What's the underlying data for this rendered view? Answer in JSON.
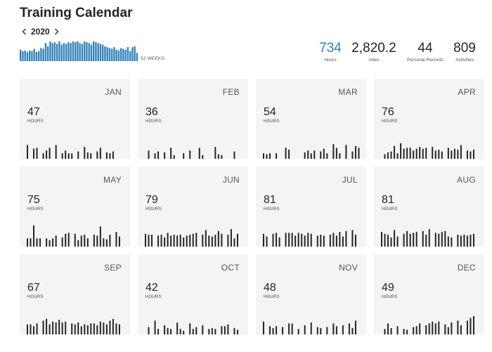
{
  "header": {
    "title": "Training Calendar",
    "year": "2020",
    "weeks_label": "52 WEEKS"
  },
  "stats": [
    {
      "value": "734",
      "label": "Hours"
    },
    {
      "value": "2,820.2",
      "label": "miles"
    },
    {
      "value": "44",
      "label": "Personal Records"
    },
    {
      "value": "809",
      "label": "Activities"
    }
  ],
  "accent_color": "#2f81b7",
  "weekly_hours": [
    14,
    12,
    13,
    11,
    13,
    12,
    15,
    11,
    12,
    16,
    15,
    22,
    18,
    24,
    22,
    23,
    21,
    24,
    20,
    22,
    21,
    23,
    22,
    24,
    23,
    24,
    22,
    21,
    24,
    23,
    22,
    20,
    24,
    23,
    22,
    21,
    20,
    18,
    17,
    16,
    15,
    17,
    14,
    13,
    16,
    15,
    14,
    17,
    12,
    17,
    18,
    10
  ],
  "months": [
    {
      "name": "JAN",
      "hours": "47",
      "unit": "HOURS",
      "daily": [
        15,
        0,
        11,
        12,
        0,
        6,
        9,
        12,
        0,
        15,
        0,
        6,
        9,
        6,
        6,
        0,
        8,
        0,
        13,
        7,
        6,
        0,
        8,
        12,
        0,
        7,
        6,
        8
      ]
    },
    {
      "name": "FEB",
      "hours": "36",
      "unit": "HOURS",
      "daily": [
        0,
        9,
        0,
        6,
        8,
        0,
        7,
        0,
        12,
        4,
        0,
        0,
        6,
        0,
        9,
        0,
        0,
        12,
        4,
        0,
        0,
        0,
        13,
        5,
        4,
        0,
        0,
        0,
        8
      ]
    },
    {
      "name": "MAR",
      "hours": "54",
      "unit": "HOURS",
      "daily": [
        6,
        5,
        6,
        0,
        6,
        0,
        0,
        12,
        10,
        0,
        0,
        0,
        0,
        7,
        9,
        6,
        9,
        0,
        8,
        11,
        6,
        0,
        16,
        12,
        6,
        0,
        15,
        0,
        8,
        14,
        12,
        7
      ]
    },
    {
      "name": "APR",
      "hours": "76",
      "unit": "HOURS",
      "daily": [
        0,
        5,
        7,
        8,
        14,
        6,
        17,
        11,
        12,
        12,
        9,
        11,
        13,
        11,
        12,
        0,
        13,
        9,
        10,
        8,
        0,
        12,
        9,
        11,
        10,
        15,
        0,
        9,
        8,
        10
      ]
    },
    {
      "name": "MAY",
      "hours": "75",
      "unit": "HOURS",
      "daily": [
        9,
        9,
        23,
        9,
        9,
        0,
        9,
        7,
        9,
        12,
        0,
        10,
        14,
        15,
        0,
        14,
        7,
        12,
        13,
        9,
        0,
        13,
        12,
        22,
        9,
        8,
        13,
        0,
        16,
        11
      ]
    },
    {
      "name": "JUN",
      "hours": "79",
      "unit": "HOURS",
      "daily": [
        14,
        13,
        13,
        0,
        12,
        13,
        10,
        15,
        12,
        13,
        12,
        13,
        10,
        12,
        13,
        14,
        15,
        0,
        13,
        18,
        12,
        11,
        13,
        17,
        14,
        0,
        13,
        19,
        9,
        14
      ]
    },
    {
      "name": "JUL",
      "hours": "81",
      "unit": "HOURS",
      "daily": [
        14,
        11,
        0,
        14,
        15,
        10,
        0,
        15,
        15,
        15,
        12,
        15,
        14,
        12,
        15,
        14,
        0,
        12,
        13,
        12,
        0,
        13,
        15,
        12,
        16,
        11,
        17,
        0,
        18,
        13,
        0,
        13
      ]
    },
    {
      "name": "AUG",
      "hours": "81",
      "unit": "HOURS",
      "daily": [
        16,
        14,
        13,
        10,
        18,
        11,
        0,
        14,
        17,
        14,
        15,
        16,
        0,
        17,
        13,
        19,
        0,
        15,
        14,
        16,
        17,
        11,
        10,
        0,
        13,
        12,
        13,
        12,
        13,
        14
      ]
    },
    {
      "name": "SEP",
      "hours": "67",
      "unit": "HOURS",
      "daily": [
        11,
        11,
        9,
        12,
        0,
        15,
        17,
        11,
        14,
        13,
        16,
        13,
        14,
        0,
        12,
        11,
        13,
        9,
        11,
        10,
        12,
        12,
        10,
        14,
        13,
        11,
        15,
        17,
        12,
        11
      ]
    },
    {
      "name": "OCT",
      "hours": "42",
      "unit": "HOURS",
      "daily": [
        0,
        8,
        0,
        15,
        6,
        0,
        10,
        7,
        6,
        0,
        13,
        6,
        4,
        0,
        12,
        6,
        8,
        0,
        10,
        0,
        6,
        7,
        6,
        0,
        9,
        9,
        11,
        0,
        7,
        5,
        0
      ]
    },
    {
      "name": "NOV",
      "hours": "48",
      "unit": "HOURS",
      "daily": [
        14,
        0,
        9,
        7,
        9,
        0,
        8,
        0,
        12,
        12,
        0,
        6,
        0,
        10,
        0,
        13,
        0,
        8,
        7,
        0,
        8,
        0,
        12,
        9,
        0,
        10,
        0,
        12,
        7,
        15
      ]
    },
    {
      "name": "DEC",
      "hours": "49",
      "unit": "HOURS",
      "daily": [
        0,
        6,
        12,
        7,
        0,
        9,
        0,
        6,
        5,
        0,
        8,
        9,
        12,
        0,
        10,
        12,
        14,
        12,
        14,
        0,
        11,
        8,
        13,
        0,
        15,
        10,
        0,
        15,
        18,
        20
      ]
    }
  ]
}
